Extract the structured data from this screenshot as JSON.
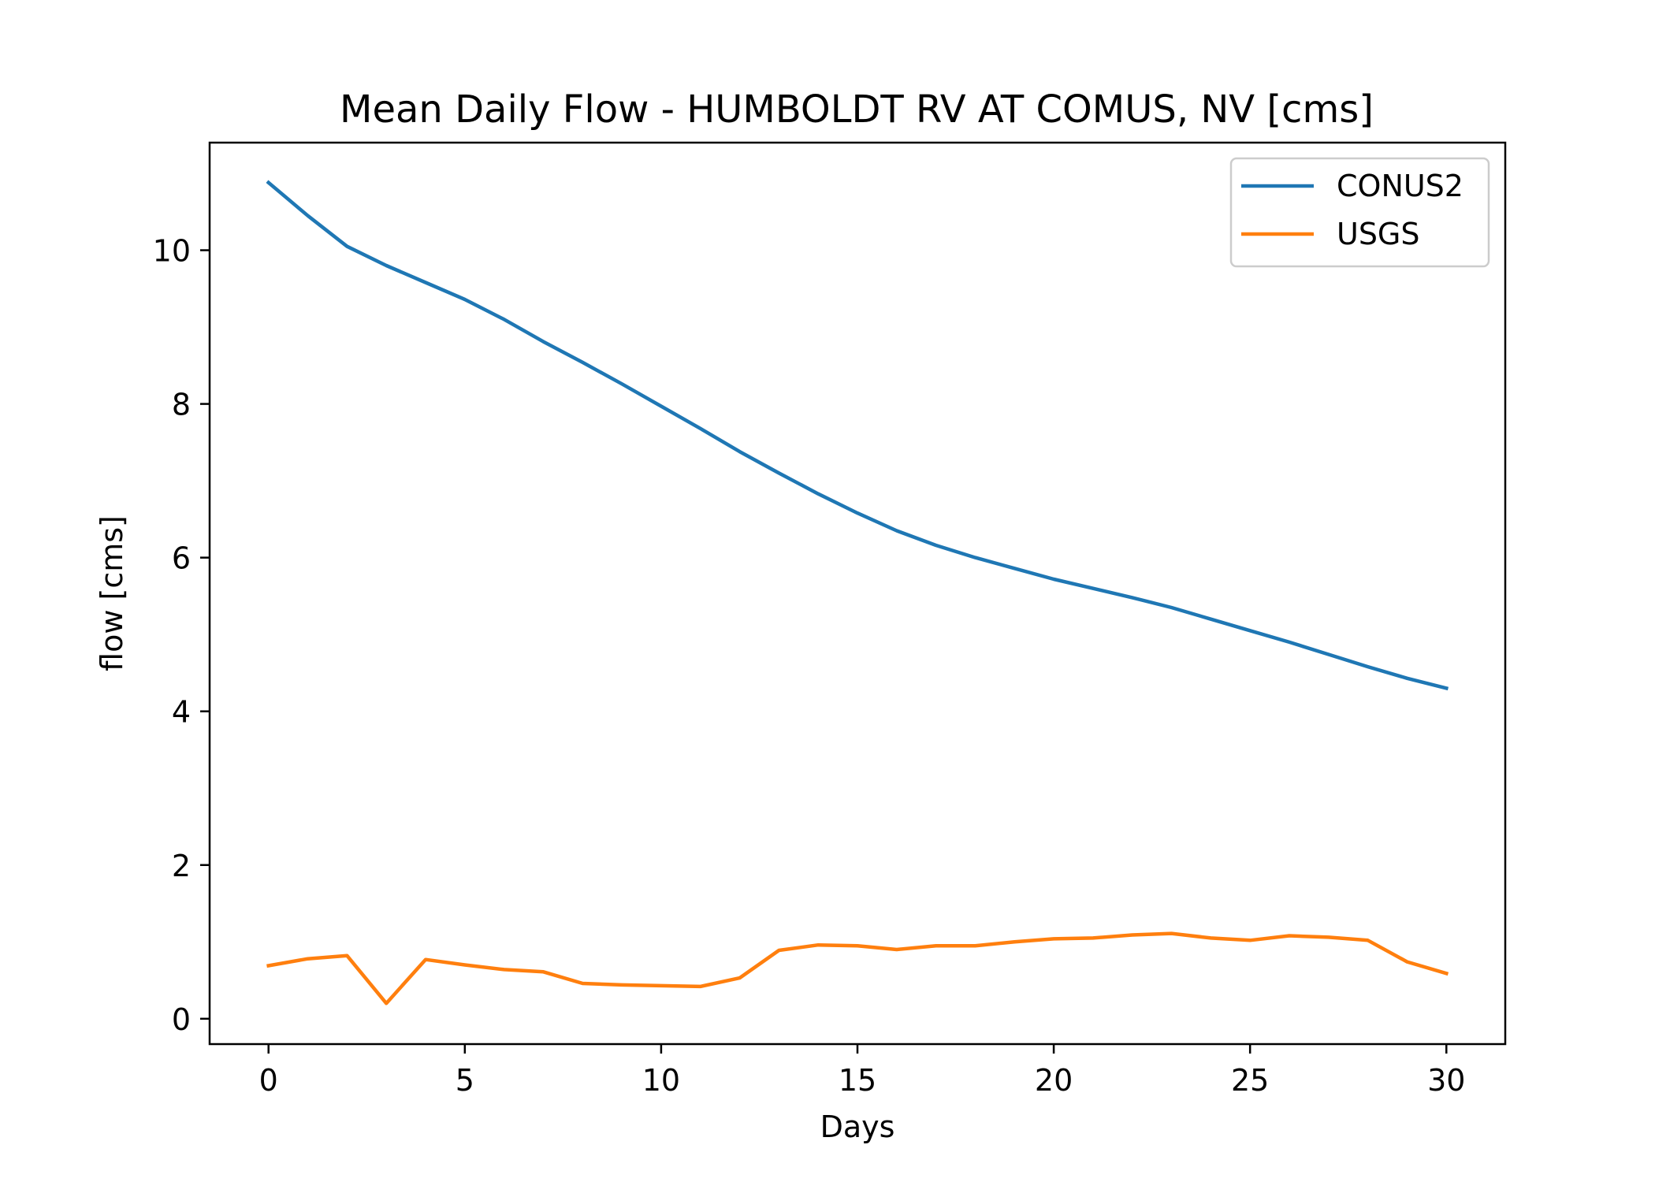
{
  "chart_data": {
    "type": "line",
    "title": "Mean Daily Flow - HUMBOLDT RV AT COMUS, NV [cms]",
    "xlabel": "Days",
    "ylabel": "flow [cms]",
    "xlim": [
      -1.5,
      31.5
    ],
    "ylim": [
      -0.33,
      11.4
    ],
    "xticks": [
      0,
      5,
      10,
      15,
      20,
      25,
      30
    ],
    "yticks": [
      0,
      2,
      4,
      6,
      8,
      10
    ],
    "grid": false,
    "legend_position": "top-right",
    "x": [
      0,
      1,
      2,
      3,
      4,
      5,
      6,
      7,
      8,
      9,
      10,
      11,
      12,
      13,
      14,
      15,
      16,
      17,
      18,
      19,
      20,
      21,
      22,
      23,
      24,
      25,
      26,
      27,
      28,
      29,
      30
    ],
    "series": [
      {
        "name": "CONUS2",
        "color": "#1f77b4",
        "values": [
          10.88,
          10.45,
          10.05,
          9.8,
          9.58,
          9.36,
          9.1,
          8.81,
          8.54,
          8.26,
          7.97,
          7.68,
          7.38,
          7.1,
          6.83,
          6.58,
          6.35,
          6.16,
          6.0,
          5.86,
          5.72,
          5.6,
          5.48,
          5.35,
          5.2,
          5.05,
          4.9,
          4.74,
          4.58,
          4.43,
          4.3
        ]
      },
      {
        "name": "USGS",
        "color": "#ff7f0e",
        "values": [
          0.69,
          0.78,
          0.82,
          0.2,
          0.77,
          0.7,
          0.64,
          0.61,
          0.46,
          0.44,
          0.43,
          0.42,
          0.53,
          0.89,
          0.96,
          0.95,
          0.9,
          0.95,
          0.95,
          1.0,
          1.04,
          1.05,
          1.09,
          1.11,
          1.05,
          1.02,
          1.08,
          1.06,
          1.02,
          0.74,
          0.59
        ]
      }
    ]
  }
}
